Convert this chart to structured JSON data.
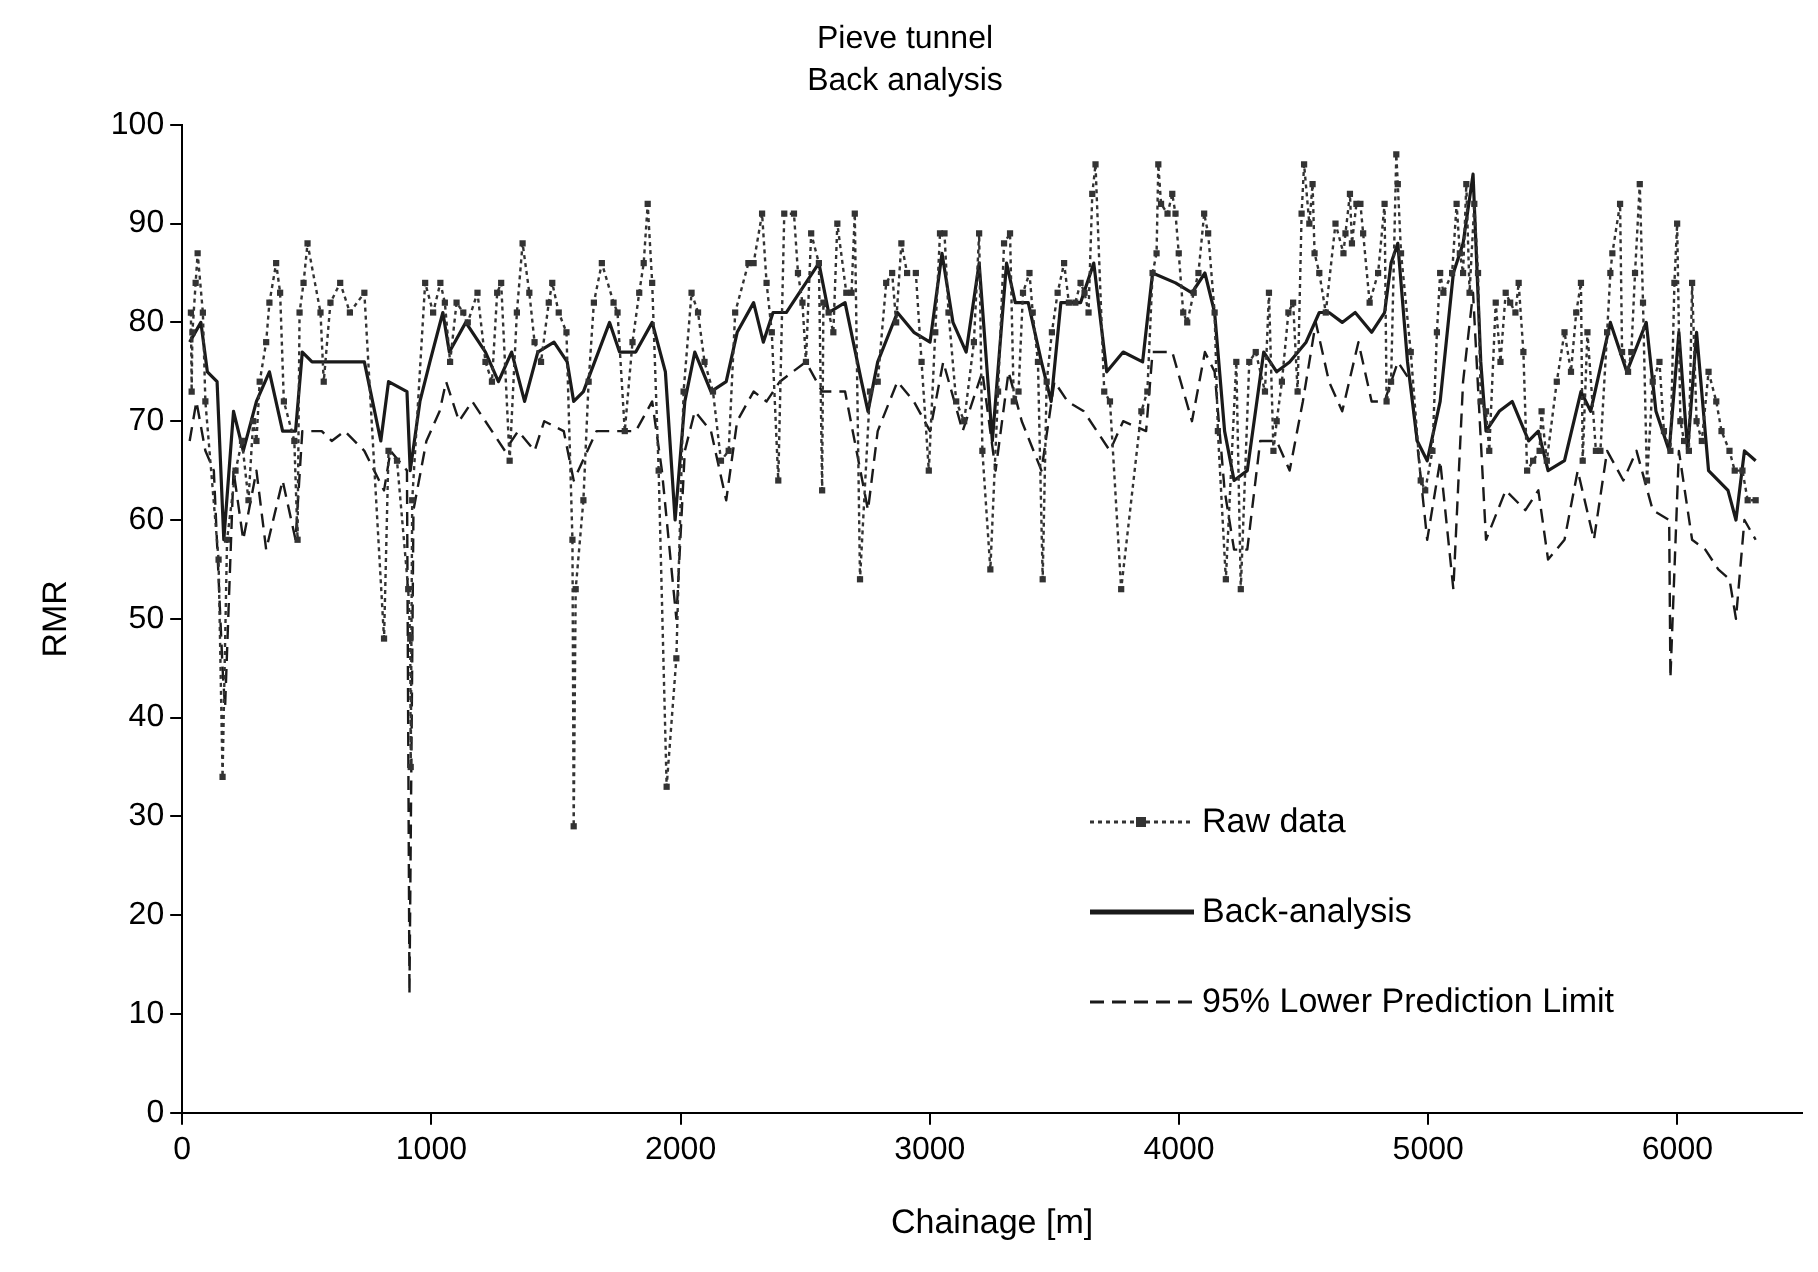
{
  "chart_data": {
    "type": "line",
    "title": "Pieve tunnel",
    "subtitle": "Back analysis",
    "xlabel": "Chainage [m]",
    "ylabel": "RMR",
    "xlim": [
      0,
      6500
    ],
    "xticks": [
      0,
      1000,
      2000,
      3000,
      4000,
      5000,
      6000
    ],
    "ylim": [
      0,
      100
    ],
    "yticks": [
      0,
      10,
      20,
      30,
      40,
      50,
      60,
      70,
      80,
      90,
      100
    ],
    "grid": false,
    "legend": "bottom right",
    "series": [
      {
        "name": "Raw data",
        "color": "#333333",
        "marker": "square",
        "line_style": "dotted",
        "x": [
          35,
          38,
          41,
          54,
          62,
          83,
          93,
          146,
          162,
          180,
          214,
          240,
          266,
          285,
          298,
          311,
          337,
          350,
          377,
          393,
          408,
          450,
          463,
          471,
          487,
          503,
          555,
          568,
          595,
          634,
          673,
          731,
          810,
          828,
          862,
          907,
          915,
          917,
          923,
          975,
          1007,
          1036,
          1054,
          1075,
          1101,
          1128,
          1146,
          1185,
          1217,
          1243,
          1264,
          1280,
          1314,
          1343,
          1366,
          1393,
          1414,
          1440,
          1471,
          1485,
          1511,
          1542,
          1566,
          1571,
          1579,
          1610,
          1631,
          1652,
          1684,
          1731,
          1747,
          1776,
          1807,
          1834,
          1852,
          1868,
          1886,
          1912,
          1944,
          1983,
          2012,
          2044,
          2070,
          2096,
          2130,
          2162,
          2193,
          2219,
          2272,
          2293,
          2327,
          2345,
          2366,
          2392,
          2416,
          2455,
          2471,
          2489,
          2503,
          2524,
          2555,
          2568,
          2573,
          2594,
          2613,
          2629,
          2665,
          2686,
          2699,
          2720,
          2760,
          2791,
          2825,
          2849,
          2865,
          2886,
          2909,
          2944,
          2967,
          2996,
          3022,
          3041,
          3059,
          3075,
          3106,
          3138,
          3177,
          3198,
          3211,
          3243,
          3274,
          3298,
          3322,
          3337,
          3356,
          3374,
          3400,
          3413,
          3434,
          3453,
          3469,
          3490,
          3513,
          3539,
          3558,
          3584,
          3605,
          3621,
          3637,
          3652,
          3665,
          3700,
          3723,
          3768,
          3849,
          3873,
          3894,
          3910,
          3917,
          3928,
          3954,
          3973,
          3986,
          3999,
          4017,
          4033,
          4059,
          4078,
          4101,
          4117,
          4143,
          4156,
          4188,
          4230,
          4248,
          4282,
          4308,
          4345,
          4361,
          4379,
          4392,
          4413,
          4439,
          4458,
          4476,
          4492,
          4502,
          4523,
          4536,
          4544,
          4563,
          4589,
          4628,
          4660,
          4668,
          4686,
          4694,
          4712,
          4728,
          4739,
          4765,
          4799,
          4825,
          4833,
          4851,
          4872,
          4878,
          4891,
          4930,
          4970,
          4988,
          5017,
          5035,
          5048,
          5061,
          5096,
          5114,
          5127,
          5140,
          5153,
          5166,
          5185,
          5200,
          5211,
          5232,
          5245,
          5271,
          5290,
          5311,
          5329,
          5350,
          5363,
          5382,
          5397,
          5421,
          5447,
          5455,
          5476,
          5516,
          5547,
          5573,
          5594,
          5613,
          5620,
          5639,
          5673,
          5691,
          5718,
          5731,
          5739,
          5770,
          5778,
          5802,
          5815,
          5830,
          5849,
          5862,
          5878,
          5901,
          5928,
          5946,
          5972,
          5988,
          5999,
          6012,
          6027,
          6046,
          6059,
          6077,
          6098,
          6125,
          6156,
          6177,
          6209,
          6230,
          6261,
          6282,
          6314
        ],
        "values": [
          81,
          73,
          79,
          84,
          87,
          81,
          72,
          56,
          34,
          58,
          65,
          68,
          62,
          70,
          68,
          74,
          78,
          82,
          86,
          83,
          72,
          68,
          58,
          81,
          84,
          88,
          81,
          74,
          82,
          84,
          81,
          83,
          48,
          67,
          66,
          53,
          48,
          35,
          62,
          84,
          81,
          84,
          82,
          76,
          82,
          81,
          80,
          83,
          76,
          74,
          83,
          84,
          66,
          81,
          88,
          83,
          78,
          76,
          82,
          84,
          81,
          79,
          58,
          29,
          53,
          62,
          74,
          82,
          86,
          82,
          81,
          69,
          78,
          83,
          86,
          92,
          84,
          65,
          33,
          46,
          73,
          83,
          81,
          76,
          73,
          66,
          67,
          81,
          86,
          86,
          91,
          84,
          79,
          64,
          91,
          91,
          85,
          82,
          76,
          89,
          86,
          63,
          82,
          81,
          79,
          90,
          83,
          83,
          91,
          54,
          73,
          74,
          84,
          85,
          80,
          88,
          85,
          85,
          76,
          65,
          79,
          89,
          89,
          81,
          72,
          70,
          78,
          89,
          67,
          55,
          73,
          88,
          89,
          72,
          73,
          83,
          85,
          81,
          76,
          54,
          74,
          79,
          83,
          86,
          82,
          82,
          84,
          83,
          81,
          93,
          96,
          73,
          72,
          53,
          71,
          73,
          85,
          87,
          96,
          92,
          91,
          93,
          91,
          87,
          81,
          80,
          83,
          85,
          91,
          89,
          81,
          69,
          54,
          76,
          53,
          76,
          77,
          73,
          83,
          67,
          70,
          74,
          81,
          82,
          73,
          91,
          96,
          90,
          94,
          87,
          85,
          81,
          90,
          87,
          89,
          93,
          88,
          92,
          92,
          89,
          82,
          85,
          92,
          72,
          74,
          97,
          94,
          87,
          77,
          64,
          63,
          67,
          79,
          85,
          83,
          85,
          92,
          87,
          85,
          94,
          83,
          92,
          85,
          72,
          71,
          67,
          82,
          76,
          83,
          82,
          81,
          84,
          77,
          65,
          66,
          67,
          71,
          66,
          74,
          79,
          75,
          81,
          84,
          66,
          79,
          67,
          67,
          79,
          85,
          87,
          92,
          77,
          75,
          77,
          85,
          94,
          82,
          64,
          74,
          76,
          69,
          67,
          84,
          90,
          70,
          68,
          67,
          84,
          70,
          68,
          75,
          72,
          69,
          67,
          65,
          65,
          62,
          62
        ]
      },
      {
        "name": "Back-analysis",
        "color": "#1a1a1a",
        "marker": "none",
        "line_style": "solid",
        "x": [
          30,
          75,
          101,
          140,
          167,
          206,
          245,
          298,
          350,
          403,
          455,
          482,
          521,
          560,
          600,
          652,
          731,
          797,
          828,
          902,
          915,
          954,
          994,
          1046,
          1072,
          1138,
          1217,
          1269,
          1322,
          1374,
          1427,
          1492,
          1545,
          1571,
          1610,
          1715,
          1755,
          1820,
          1886,
          1939,
          1978,
          2017,
          2057,
          2122,
          2183,
          2227,
          2293,
          2332,
          2371,
          2424,
          2555,
          2594,
          2660,
          2726,
          2752,
          2791,
          2870,
          2936,
          3001,
          3049,
          3093,
          3146,
          3198,
          3251,
          3308,
          3343,
          3395,
          3448,
          3487,
          3526,
          3605,
          3658,
          3710,
          3776,
          3854,
          3894,
          3986,
          4052,
          4104,
          4143,
          4183,
          4221,
          4274,
          4340,
          4392,
          4444,
          4510,
          4563,
          4602,
          4655,
          4707,
          4773,
          4825,
          4851,
          4878,
          4917,
          4956,
          4996,
          5048,
          5101,
          5140,
          5180,
          5211,
          5232,
          5285,
          5337,
          5403,
          5442,
          5481,
          5547,
          5613,
          5652,
          5731,
          5797,
          5875,
          5914,
          5967,
          6006,
          6041,
          6077,
          6125,
          6203,
          6235,
          6269,
          6314
        ],
        "values": [
          78,
          80,
          75,
          74,
          58,
          71,
          67,
          72,
          75,
          69,
          69,
          77,
          76,
          76,
          76,
          76,
          76,
          68,
          74,
          73,
          65,
          72,
          76,
          81,
          77,
          80,
          77,
          74,
          77,
          72,
          77,
          78,
          76,
          72,
          73,
          80,
          77,
          77,
          80,
          75,
          60,
          72,
          77,
          73,
          74,
          79,
          82,
          78,
          81,
          81,
          86,
          81,
          82,
          74,
          71,
          76,
          81,
          79,
          78,
          87,
          80,
          77,
          86,
          68,
          86,
          82,
          82,
          76,
          72,
          82,
          82,
          86,
          75,
          77,
          76,
          85,
          84,
          83,
          85,
          81,
          69,
          64,
          65,
          77,
          75,
          76,
          78,
          81,
          81,
          80,
          81,
          79,
          81,
          86,
          88,
          76,
          68,
          66,
          72,
          85,
          88,
          95,
          76,
          69,
          71,
          72,
          68,
          69,
          65,
          66,
          73,
          71,
          80,
          75,
          80,
          71,
          67,
          79,
          67,
          79,
          65,
          63,
          60,
          67,
          66
        ]
      },
      {
        "name": "95% Lower Prediction Limit",
        "color": "#1a1a1a",
        "marker": "none",
        "line_style": "dashed",
        "x": [
          30,
          57,
          93,
          127,
          162,
          172,
          206,
          245,
          298,
          337,
          403,
          455,
          482,
          560,
          600,
          652,
          731,
          810,
          836,
          902,
          912,
          928,
          980,
          1033,
          1059,
          1111,
          1164,
          1243,
          1295,
          1348,
          1414,
          1453,
          1531,
          1571,
          1663,
          1729,
          1768,
          1820,
          1886,
          1925,
          1983,
          2017,
          2057,
          2122,
          2183,
          2227,
          2293,
          2345,
          2398,
          2450,
          2503,
          2568,
          2660,
          2752,
          2791,
          2870,
          2936,
          3001,
          3054,
          3132,
          3211,
          3264,
          3316,
          3369,
          3448,
          3500,
          3553,
          3618,
          3723,
          3776,
          3868,
          3894,
          3973,
          4052,
          4104,
          4143,
          4183,
          4221,
          4274,
          4326,
          4392,
          4444,
          4497,
          4549,
          4602,
          4655,
          4720,
          4773,
          4825,
          4878,
          4930,
          4996,
          5048,
          5101,
          5140,
          5180,
          5232,
          5311,
          5390,
          5442,
          5481,
          5547,
          5600,
          5665,
          5718,
          5783,
          5836,
          5901,
          5967,
          5972,
          6006,
          6059,
          6112,
          6164,
          6209,
          6235,
          6269,
          6314
        ],
        "values": [
          68,
          72,
          67,
          65,
          45,
          41,
          65,
          58,
          65,
          57,
          64,
          58,
          69,
          69,
          68,
          69,
          67,
          63,
          67,
          65,
          12,
          61,
          68,
          71,
          74,
          70,
          72,
          69,
          67,
          69,
          67,
          70,
          69,
          64,
          69,
          69,
          69,
          69,
          72,
          65,
          50,
          67,
          71,
          69,
          62,
          70,
          73,
          72,
          74,
          75,
          76,
          73,
          73,
          61,
          69,
          74,
          72,
          69,
          76,
          69,
          75,
          65,
          75,
          70,
          65,
          74,
          72,
          71,
          67,
          70,
          69,
          77,
          77,
          70,
          77,
          75,
          63,
          57,
          57,
          68,
          68,
          65,
          72,
          80,
          74,
          71,
          78,
          72,
          72,
          76,
          74,
          58,
          66,
          53,
          74,
          83,
          58,
          63,
          61,
          63,
          56,
          58,
          65,
          58,
          67,
          64,
          67,
          61,
          60,
          44,
          67,
          58,
          57,
          55,
          54,
          50,
          60,
          58
        ]
      }
    ]
  }
}
